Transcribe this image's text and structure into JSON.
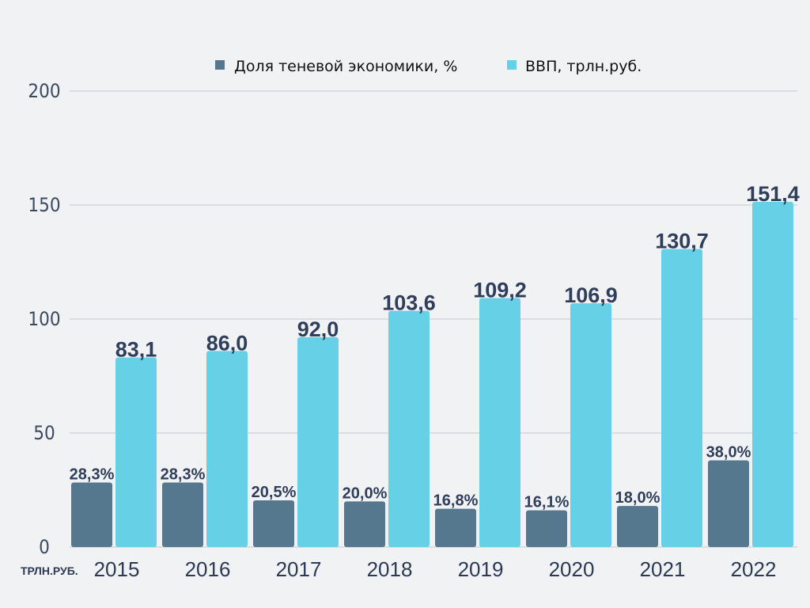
{
  "chart_data": {
    "type": "bar",
    "categories": [
      "2015",
      "2016",
      "2017",
      "2018",
      "2019",
      "2020",
      "2021",
      "2022"
    ],
    "series": [
      {
        "name": "Доля теневой экономики, %",
        "values": [
          28.3,
          28.3,
          20.5,
          20.0,
          16.8,
          16.1,
          18.0,
          38.0
        ],
        "labels": [
          "28,3%",
          "28,3%",
          "20,5%",
          "20,0%",
          "16,8%",
          "16,1%",
          "18,0%",
          "38,0%"
        ],
        "color": "#56788f"
      },
      {
        "name": "ВВП, трлн.руб.",
        "values": [
          83.1,
          86.0,
          92.0,
          103.6,
          109.2,
          106.9,
          130.7,
          151.4
        ],
        "labels": [
          "83,1",
          "86,0",
          "92,0",
          "103,6",
          "109,2",
          "106,9",
          "130,7",
          "151,4"
        ],
        "color": "#66d0e6"
      }
    ],
    "yticks": [
      "0",
      "50",
      "100",
      "150",
      "200"
    ],
    "ylim": [
      0,
      200
    ],
    "ylabel": "ТРЛН.РУБ.",
    "grid": true,
    "legend_position": "top-center"
  }
}
